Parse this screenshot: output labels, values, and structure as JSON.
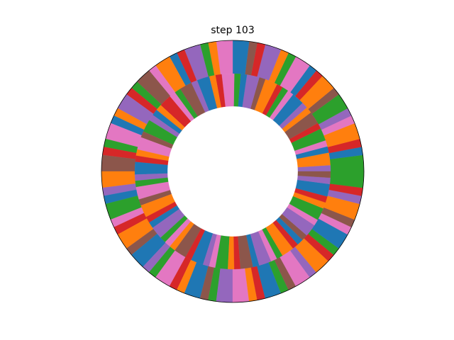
{
  "chart_data": {
    "type": "pie",
    "title": "step 103",
    "rings": [
      {
        "values": [
          2,
          1,
          1,
          2,
          1,
          1,
          2,
          1,
          2,
          1,
          1,
          2,
          1,
          1,
          2,
          1,
          1,
          2,
          2,
          1,
          1,
          2,
          1,
          1,
          2,
          1,
          2,
          1,
          1,
          2,
          1,
          1,
          2,
          1,
          1,
          2,
          2,
          1,
          1,
          2,
          1,
          1,
          2,
          1,
          2,
          1,
          1,
          2,
          1,
          1,
          2,
          1,
          1,
          2,
          2,
          1,
          1,
          2,
          1,
          1,
          2,
          1,
          2,
          1,
          1,
          2,
          1,
          1,
          2,
          1,
          1,
          2
        ],
        "colors": [
          "#2ca02c",
          "#1f77b4",
          "#d62728",
          "#ff7f0e",
          "#e377c2",
          "#9467bd",
          "#2ca02c",
          "#8c564b",
          "#ff7f0e",
          "#d62728",
          "#1f77b4",
          "#e377c2",
          "#2ca02c",
          "#ff7f0e",
          "#9467bd",
          "#d62728",
          "#8c564b",
          "#1f77b4",
          "#e377c2",
          "#ff7f0e",
          "#2ca02c",
          "#9467bd",
          "#d62728",
          "#1f77b4",
          "#ff7f0e",
          "#e377c2",
          "#8c564b",
          "#2ca02c",
          "#d62728",
          "#9467bd",
          "#ff7f0e",
          "#1f77b4",
          "#e377c2",
          "#2ca02c",
          "#d62728",
          "#8c564b",
          "#ff7f0e",
          "#9467bd",
          "#1f77b4",
          "#2ca02c",
          "#e377c2",
          "#d62728",
          "#ff7f0e",
          "#8c564b",
          "#1f77b4",
          "#9467bd",
          "#2ca02c",
          "#e377c2",
          "#d62728",
          "#ff7f0e",
          "#1f77b4",
          "#8c564b",
          "#2ca02c",
          "#9467bd",
          "#e377c2",
          "#ff7f0e",
          "#d62728",
          "#1f77b4",
          "#2ca02c",
          "#8c564b",
          "#e377c2",
          "#9467bd",
          "#ff7f0e",
          "#d62728",
          "#2ca02c",
          "#1f77b4",
          "#e377c2",
          "#8c564b",
          "#ff7f0e",
          "#9467bd",
          "#d62728",
          "#2ca02c"
        ]
      },
      {
        "values": [
          1,
          2,
          1,
          1,
          2,
          1,
          2,
          1,
          1,
          2,
          1,
          1,
          1,
          2,
          1,
          2,
          1,
          1,
          2,
          1,
          1,
          2,
          1,
          2,
          1,
          1,
          2,
          1,
          1,
          1,
          2,
          1,
          2,
          1,
          1,
          2,
          1,
          1,
          2,
          1,
          2,
          1,
          1,
          2,
          1,
          1,
          1,
          2,
          1,
          2,
          1,
          1,
          2,
          1,
          1,
          2,
          1,
          2,
          1,
          1,
          2,
          1,
          1,
          1,
          2,
          1,
          2,
          1,
          1,
          2,
          1,
          1
        ],
        "colors": [
          "#9467bd",
          "#ff7f0e",
          "#1f77b4",
          "#e377c2",
          "#2ca02c",
          "#d62728",
          "#8c564b",
          "#ff7f0e",
          "#9467bd",
          "#1f77b4",
          "#e377c2",
          "#2ca02c",
          "#d62728",
          "#ff7f0e",
          "#8c564b",
          "#9467bd",
          "#1f77b4",
          "#2ca02c",
          "#e377c2",
          "#d62728",
          "#ff7f0e",
          "#1f77b4",
          "#9467bd",
          "#8c564b",
          "#2ca02c",
          "#e377c2",
          "#d62728",
          "#ff7f0e",
          "#1f77b4",
          "#9467bd",
          "#2ca02c",
          "#8c564b",
          "#e377c2",
          "#ff7f0e",
          "#d62728",
          "#1f77b4",
          "#9467bd",
          "#2ca02c",
          "#e377c2",
          "#8c564b",
          "#ff7f0e",
          "#d62728",
          "#1f77b4",
          "#9467bd",
          "#2ca02c",
          "#e377c2",
          "#ff7f0e",
          "#8c564b",
          "#d62728",
          "#1f77b4",
          "#9467bd",
          "#e377c2",
          "#2ca02c",
          "#ff7f0e",
          "#d62728",
          "#8c564b",
          "#1f77b4",
          "#9467bd",
          "#e377c2",
          "#2ca02c",
          "#ff7f0e",
          "#d62728",
          "#1f77b4",
          "#8c564b",
          "#9467bd",
          "#e377c2",
          "#2ca02c",
          "#ff7f0e",
          "#d62728",
          "#1f77b4",
          "#9467bd",
          "#8c564b"
        ]
      }
    ]
  }
}
